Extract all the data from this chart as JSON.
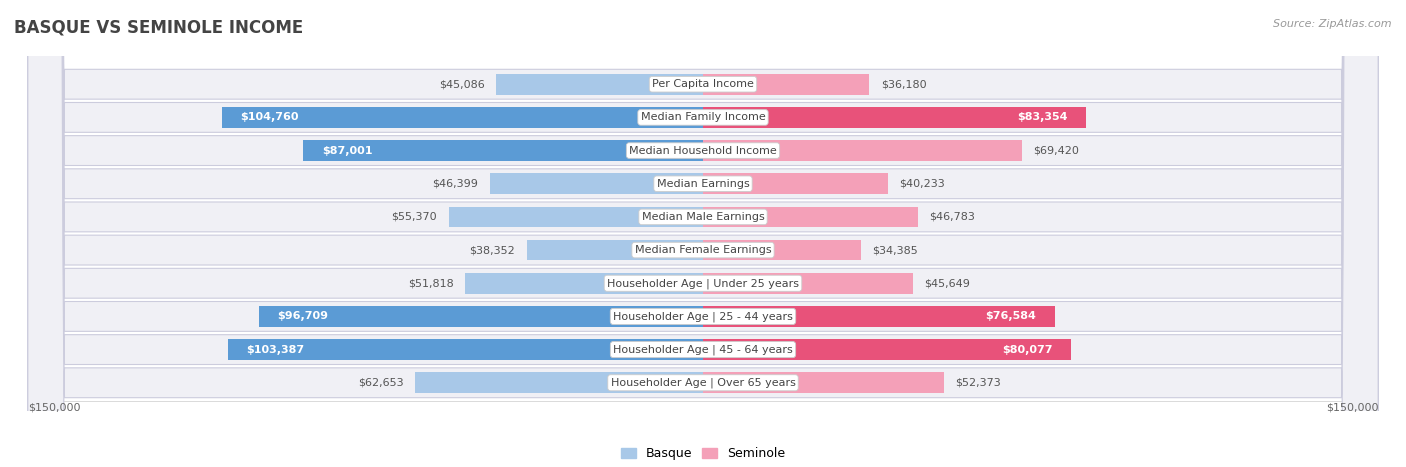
{
  "title": "BASQUE VS SEMINOLE INCOME",
  "source": "Source: ZipAtlas.com",
  "categories": [
    "Per Capita Income",
    "Median Family Income",
    "Median Household Income",
    "Median Earnings",
    "Median Male Earnings",
    "Median Female Earnings",
    "Householder Age | Under 25 years",
    "Householder Age | 25 - 44 years",
    "Householder Age | 45 - 64 years",
    "Householder Age | Over 65 years"
  ],
  "basque_values": [
    45086,
    104760,
    87001,
    46399,
    55370,
    38352,
    51818,
    96709,
    103387,
    62653
  ],
  "seminole_values": [
    36180,
    83354,
    69420,
    40233,
    46783,
    34385,
    45649,
    76584,
    80077,
    52373
  ],
  "basque_labels": [
    "$45,086",
    "$104,760",
    "$87,001",
    "$46,399",
    "$55,370",
    "$38,352",
    "$51,818",
    "$96,709",
    "$103,387",
    "$62,653"
  ],
  "seminole_labels": [
    "$36,180",
    "$83,354",
    "$69,420",
    "$40,233",
    "$46,783",
    "$34,385",
    "$45,649",
    "$76,584",
    "$80,077",
    "$52,373"
  ],
  "max_value": 150000,
  "basque_color_light": "#a8c8e8",
  "basque_color_dark": "#5b9bd5",
  "seminole_color_light": "#f4a0b8",
  "seminole_color_dark": "#e8527a",
  "row_bg_color": "#f0f0f5",
  "row_border_color": "#ccccdd",
  "label_inside_threshold": 75000,
  "background_color": "#ffffff",
  "title_color": "#444444",
  "label_color_outside": "#555555",
  "label_color_inside": "#ffffff"
}
